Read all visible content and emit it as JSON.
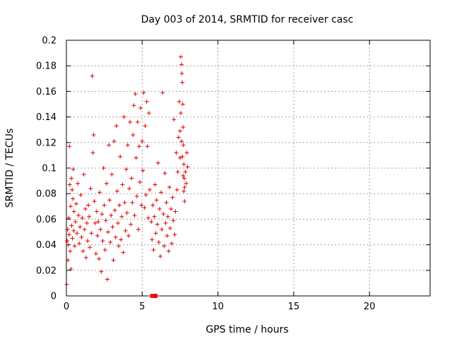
{
  "chart_data": {
    "type": "scatter",
    "title": "Day 003 of 2014, SRMTID for receiver casc",
    "xlabel": "GPS time / hours",
    "ylabel": "SRMTID / TECUs",
    "xlim": [
      0,
      24
    ],
    "ylim": [
      0,
      0.2
    ],
    "x_ticks": [
      0,
      5,
      10,
      15,
      20
    ],
    "y_ticks": [
      0,
      0.02,
      0.04,
      0.06,
      0.08,
      0.1,
      0.12,
      0.14,
      0.16,
      0.18,
      0.2
    ],
    "x_tick_labels": [
      "0",
      "5",
      "10",
      "15",
      "20"
    ],
    "y_tick_labels": [
      "0",
      "0.02",
      "0.04",
      "0.06",
      "0.08",
      "0.1",
      "0.12",
      "0.14",
      "0.16",
      "0.18",
      "0.2"
    ],
    "grid": true,
    "marker": "+",
    "series": [
      {
        "name": "SRMTID",
        "color": "#e00000",
        "points": [
          [
            0.02,
            0.009
          ],
          [
            0.05,
            0.043
          ],
          [
            0.08,
            0.052
          ],
          [
            0.1,
            0.028
          ],
          [
            0.12,
            0.04
          ],
          [
            0.15,
            0.061
          ],
          [
            0.18,
            0.048
          ],
          [
            0.2,
            0.117
          ],
          [
            0.22,
            0.087
          ],
          [
            0.25,
            0.035
          ],
          [
            0.28,
            0.07
          ],
          [
            0.3,
            0.021
          ],
          [
            0.33,
            0.092
          ],
          [
            0.35,
            0.055
          ],
          [
            0.38,
            0.083
          ],
          [
            0.4,
            0.045
          ],
          [
            0.43,
            0.076
          ],
          [
            0.45,
            0.099
          ],
          [
            0.48,
            0.051
          ],
          [
            0.5,
            0.066
          ],
          [
            0.55,
            0.039
          ],
          [
            0.6,
            0.058
          ],
          [
            0.65,
            0.072
          ],
          [
            0.7,
            0.049
          ],
          [
            0.75,
            0.088
          ],
          [
            0.8,
            0.063
          ],
          [
            0.85,
            0.041
          ],
          [
            0.9,
            0.054
          ],
          [
            0.95,
            0.079
          ],
          [
            1.0,
            0.046
          ],
          [
            1.05,
            0.061
          ],
          [
            1.1,
            0.035
          ],
          [
            1.15,
            0.095
          ],
          [
            1.2,
            0.052
          ],
          [
            1.25,
            0.068
          ],
          [
            1.3,
            0.03
          ],
          [
            1.35,
            0.057
          ],
          [
            1.4,
            0.043
          ],
          [
            1.45,
            0.071
          ],
          [
            1.5,
            0.062
          ],
          [
            1.55,
            0.038
          ],
          [
            1.6,
            0.084
          ],
          [
            1.65,
            0.049
          ],
          [
            1.7,
            0.172
          ],
          [
            1.75,
            0.112
          ],
          [
            1.8,
            0.126
          ],
          [
            1.85,
            0.074
          ],
          [
            1.9,
            0.057
          ],
          [
            1.95,
            0.033
          ],
          [
            2.0,
            0.066
          ],
          [
            2.05,
            0.047
          ],
          [
            2.1,
            0.058
          ],
          [
            2.15,
            0.029
          ],
          [
            2.2,
            0.081
          ],
          [
            2.25,
            0.052
          ],
          [
            2.3,
            0.019
          ],
          [
            2.35,
            0.064
          ],
          [
            2.4,
            0.043
          ],
          [
            2.45,
            0.1
          ],
          [
            2.5,
            0.071
          ],
          [
            2.55,
            0.036
          ],
          [
            2.6,
            0.059
          ],
          [
            2.65,
            0.088
          ],
          [
            2.7,
            0.013
          ],
          [
            2.75,
            0.05
          ],
          [
            2.8,
            0.118
          ],
          [
            2.85,
            0.075
          ],
          [
            2.9,
            0.042
          ],
          [
            2.95,
            0.063
          ],
          [
            3.0,
            0.095
          ],
          [
            3.05,
            0.054
          ],
          [
            3.1,
            0.028
          ],
          [
            3.15,
            0.121
          ],
          [
            3.2,
            0.067
          ],
          [
            3.25,
            0.046
          ],
          [
            3.3,
            0.133
          ],
          [
            3.35,
            0.082
          ],
          [
            3.4,
            0.057
          ],
          [
            3.45,
            0.039
          ],
          [
            3.5,
            0.071
          ],
          [
            3.55,
            0.109
          ],
          [
            3.6,
            0.044
          ],
          [
            3.65,
            0.062
          ],
          [
            3.7,
            0.087
          ],
          [
            3.75,
            0.034
          ],
          [
            3.8,
            0.14
          ],
          [
            3.85,
            0.073
          ],
          [
            3.9,
            0.051
          ],
          [
            3.95,
            0.099
          ],
          [
            4.0,
            0.065
          ],
          [
            4.05,
            0.118
          ],
          [
            4.1,
            0.047
          ],
          [
            4.15,
            0.084
          ],
          [
            4.2,
            0.136
          ],
          [
            4.25,
            0.056
          ],
          [
            4.3,
            0.092
          ],
          [
            4.35,
            0.073
          ],
          [
            4.4,
            0.126
          ],
          [
            4.45,
            0.149
          ],
          [
            4.5,
            0.063
          ],
          [
            4.55,
            0.158
          ],
          [
            4.6,
            0.108
          ],
          [
            4.65,
            0.078
          ],
          [
            4.7,
            0.136
          ],
          [
            4.75,
            0.052
          ],
          [
            4.8,
            0.117
          ],
          [
            4.85,
            0.089
          ],
          [
            4.9,
            0.147
          ],
          [
            4.95,
            0.071
          ],
          [
            5.0,
            0.121
          ],
          [
            5.05,
            0.098
          ],
          [
            5.1,
            0.159
          ],
          [
            5.15,
            0.069
          ],
          [
            5.2,
            0.133
          ],
          [
            5.25,
            0.079
          ],
          [
            5.3,
            0.152
          ],
          [
            5.35,
            0.117
          ],
          [
            5.4,
            0.061
          ],
          [
            5.45,
            0.143
          ],
          [
            5.5,
            0.083
          ],
          [
            5.55,
            0.0
          ],
          [
            5.6,
            0.0
          ],
          [
            5.65,
            0.0
          ],
          [
            5.7,
            0.0
          ],
          [
            5.75,
            0.0
          ],
          [
            5.8,
            0.0
          ],
          [
            5.85,
            0.0
          ],
          [
            5.9,
            0.0
          ],
          [
            5.95,
            0.0
          ],
          [
            6.0,
            0.0
          ],
          [
            5.6,
            0.058
          ],
          [
            5.65,
            0.044
          ],
          [
            5.7,
            0.071
          ],
          [
            5.75,
            0.036
          ],
          [
            5.8,
            0.062
          ],
          [
            5.85,
            0.087
          ],
          [
            5.9,
            0.049
          ],
          [
            5.95,
            0.075
          ],
          [
            6.0,
            0.056
          ],
          [
            6.05,
            0.104
          ],
          [
            6.1,
            0.042
          ],
          [
            6.15,
            0.068
          ],
          [
            6.2,
            0.031
          ],
          [
            6.25,
            0.081
          ],
          [
            6.3,
            0.052
          ],
          [
            6.35,
            0.159
          ],
          [
            6.4,
            0.064
          ],
          [
            6.45,
            0.039
          ],
          [
            6.5,
            0.096
          ],
          [
            6.55,
            0.057
          ],
          [
            6.6,
            0.073
          ],
          [
            6.65,
            0.047
          ],
          [
            6.7,
            0.062
          ],
          [
            6.75,
            0.035
          ],
          [
            6.8,
            0.085
          ],
          [
            6.85,
            0.053
          ],
          [
            6.9,
            0.068
          ],
          [
            6.95,
            0.041
          ],
          [
            7.0,
            0.077
          ],
          [
            7.05,
            0.059
          ],
          [
            7.1,
            0.138
          ],
          [
            7.15,
            0.048
          ],
          [
            7.2,
            0.066
          ],
          [
            7.25,
            0.112
          ],
          [
            7.3,
            0.083
          ],
          [
            7.35,
            0.097
          ],
          [
            7.4,
            0.124
          ],
          [
            7.45,
            0.152
          ],
          [
            7.5,
            0.108
          ],
          [
            7.55,
            0.187
          ],
          [
            7.6,
            0.181
          ],
          [
            7.62,
            0.174
          ],
          [
            7.65,
            0.167
          ],
          [
            7.68,
            0.15
          ],
          [
            7.7,
            0.132
          ],
          [
            7.72,
            0.118
          ],
          [
            7.75,
            0.103
          ],
          [
            7.78,
            0.092
          ],
          [
            7.8,
            0.085
          ],
          [
            7.85,
            0.097
          ],
          [
            7.9,
            0.088
          ],
          [
            7.95,
            0.112
          ],
          [
            8.0,
            0.101
          ],
          [
            7.5,
            0.129
          ],
          [
            7.55,
            0.143
          ],
          [
            7.6,
            0.121
          ],
          [
            7.65,
            0.109
          ],
          [
            7.7,
            0.094
          ],
          [
            7.75,
            0.082
          ],
          [
            7.8,
            0.074
          ]
        ]
      }
    ]
  }
}
